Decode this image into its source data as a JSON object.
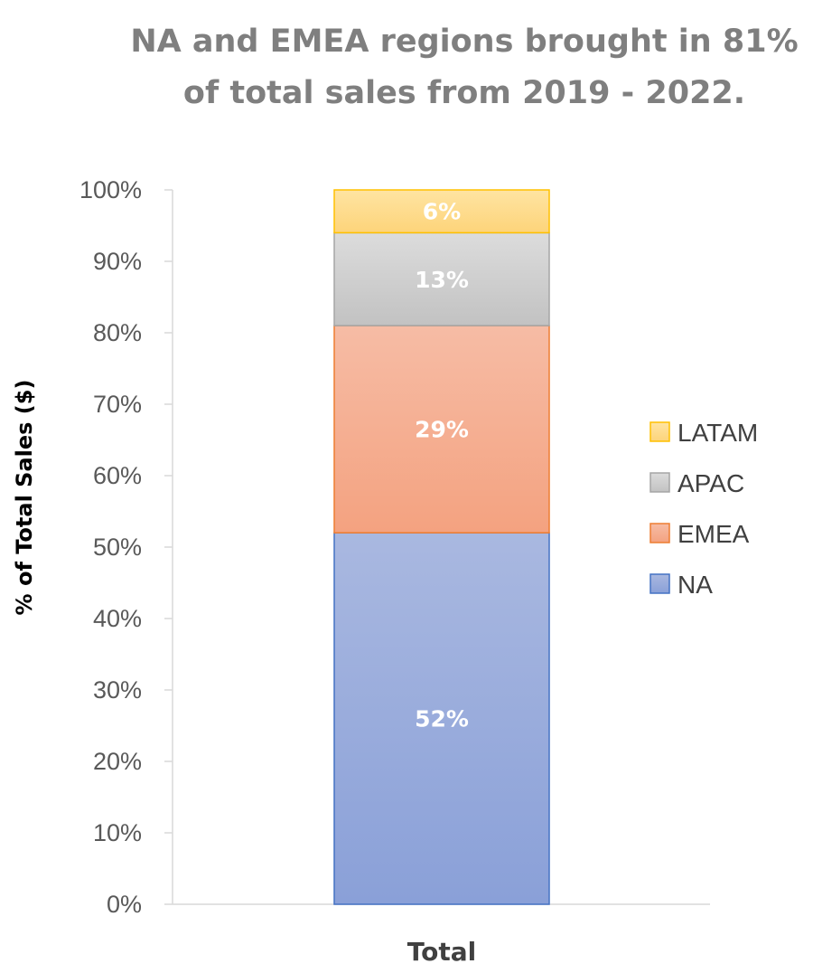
{
  "chart_data": {
    "type": "bar",
    "stacked": true,
    "title_lines": [
      "NA and EMEA regions brought in 81%",
      "of total sales from 2019 - 2022."
    ],
    "ylabel": "% of Total Sales ($)",
    "xlabel": "",
    "categories": [
      "Total"
    ],
    "ylim": [
      0,
      100
    ],
    "y_ticks": [
      "0%",
      "10%",
      "20%",
      "30%",
      "40%",
      "50%",
      "60%",
      "70%",
      "80%",
      "90%",
      "100%"
    ],
    "grid": false,
    "legend_position": "right",
    "series": [
      {
        "name": "NA",
        "values": [
          52
        ],
        "label": "52%",
        "color_top": "#a9b8e0",
        "color_bottom": "#8aa0d8",
        "border": "#4472c4"
      },
      {
        "name": "EMEA",
        "values": [
          29
        ],
        "label": "29%",
        "color_top": "#f6bca5",
        "color_bottom": "#f4a280",
        "border": "#ed7d31"
      },
      {
        "name": "APAC",
        "values": [
          13
        ],
        "label": "13%",
        "color_top": "#dcdcdc",
        "color_bottom": "#c2c2c2",
        "border": "#a5a5a5"
      },
      {
        "name": "LATAM",
        "values": [
          6
        ],
        "label": "6%",
        "color_top": "#fee4a2",
        "color_bottom": "#fdd47a",
        "border": "#ffc000"
      }
    ],
    "legend_order": [
      "LATAM",
      "APAC",
      "EMEA",
      "NA"
    ]
  }
}
